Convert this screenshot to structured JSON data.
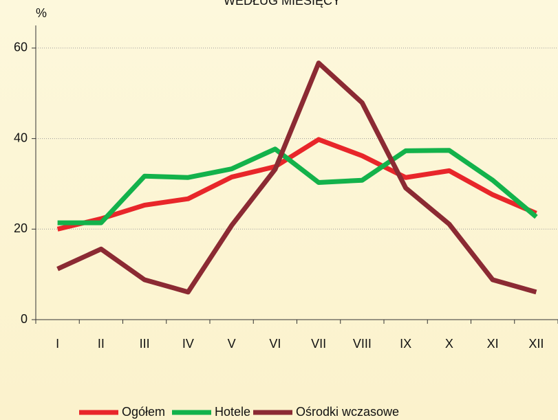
{
  "chart_data": {
    "type": "line",
    "title": "WEDŁUG MIESIĘCY",
    "y_label": "%",
    "categories": [
      "I",
      "II",
      "III",
      "IV",
      "V",
      "VI",
      "VII",
      "VIII",
      "IX",
      "X",
      "XI",
      "XII"
    ],
    "series": [
      {
        "name": "Ogółem",
        "color": "#e8262a",
        "values": [
          20,
          22.3,
          25.3,
          26.7,
          31.5,
          33.8,
          39.8,
          36.2,
          31.4,
          32.9,
          27.6,
          23.5
        ]
      },
      {
        "name": "Hotele",
        "color": "#13b24b",
        "values": [
          21.4,
          21.4,
          31.7,
          31.4,
          33.3,
          37.7,
          30.3,
          30.8,
          37.3,
          37.4,
          30.8,
          22.7
        ]
      },
      {
        "name": "Ośrodki wczasowe",
        "color": "#8b2a33",
        "values": [
          11.2,
          15.6,
          8.8,
          6.1,
          20.8,
          33.2,
          56.7,
          47.9,
          29.1,
          21.1,
          8.8,
          6.1
        ]
      }
    ],
    "ylim": [
      0,
      65
    ],
    "yticks": [
      0,
      20,
      40,
      60
    ],
    "grid": true,
    "legend": "bottom"
  }
}
